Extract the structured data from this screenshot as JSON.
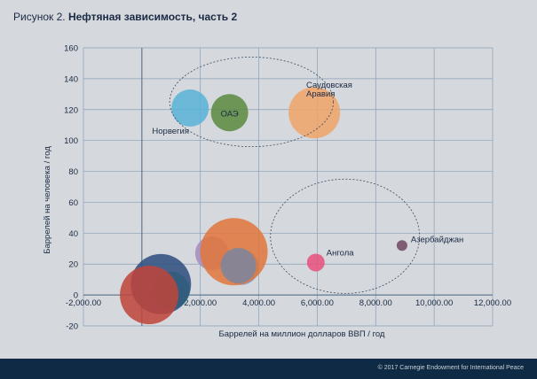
{
  "figure_title": {
    "lead": "Рисунок 2.",
    "main": "Нефтяная зависимость, часть 2"
  },
  "footer": {
    "copyright": "© 2017 Carnegie Endowment for International Peace"
  },
  "colors": {
    "background": "#d5d8dc",
    "grid": "#8aa0b8",
    "text": "#1a2a44",
    "footer": "#0f2a44"
  },
  "chart_data": {
    "type": "bubble",
    "title": "Нефтяная зависимость, часть 2",
    "xlabel": "Баррелей на миллион долларов ВВП / год",
    "ylabel": "Баррелей на человека / год",
    "xlim": [
      -2000,
      12000
    ],
    "ylim": [
      -20,
      160
    ],
    "x_ticks": [
      {
        "value": -2000,
        "label": "-2,000.00"
      },
      {
        "value": 2000,
        "label": "2,000.00"
      },
      {
        "value": 4000,
        "label": "4,000.00"
      },
      {
        "value": 6000,
        "label": "6,000.00"
      },
      {
        "value": 8000,
        "label": "8,000.00"
      },
      {
        "value": 10000,
        "label": "10,000.00"
      },
      {
        "value": 12000,
        "label": "12,000.00"
      }
    ],
    "y_ticks": [
      {
        "value": -20,
        "label": "-20"
      },
      {
        "value": 0,
        "label": "0"
      },
      {
        "value": 20,
        "label": "20"
      },
      {
        "value": 40,
        "label": "40"
      },
      {
        "value": 60,
        "label": "60"
      },
      {
        "value": 80,
        "label": "80"
      },
      {
        "value": 100,
        "label": "100"
      },
      {
        "value": 120,
        "label": "120"
      },
      {
        "value": 140,
        "label": "140"
      },
      {
        "value": 160,
        "label": "160"
      }
    ],
    "grid": true,
    "points": [
      {
        "label": "Норвегия",
        "x": 1650,
        "y": 121,
        "size": 21,
        "color": "#58b3d8"
      },
      {
        "label": "ОАЭ",
        "x": 3000,
        "y": 118,
        "size": 21,
        "color": "#5a8a3e"
      },
      {
        "label": "Саудовская Аравия",
        "x": 5900,
        "y": 118,
        "size": 29,
        "color": "#f0a469"
      },
      {
        "label": "Ангола",
        "x": 5950,
        "y": 21,
        "size": 10,
        "color": "#e8507c"
      },
      {
        "label": "Азербайджан",
        "x": 8900,
        "y": 32,
        "size": 6,
        "color": "#6e4660"
      },
      {
        "label": "",
        "x": 2400,
        "y": 27,
        "size": 19,
        "color": "#a48cc0"
      },
      {
        "label": "",
        "x": 3400,
        "y": 18,
        "size": 20,
        "color": "#7a9ac8"
      },
      {
        "label": "",
        "x": 3150,
        "y": 28,
        "size": 38,
        "color": "#e0753a"
      },
      {
        "label": "",
        "x": 3300,
        "y": 19,
        "size": 20,
        "color": "#7a86a0"
      },
      {
        "label": "",
        "x": 1000,
        "y": 3,
        "size": 21,
        "color": "#3ab06e"
      },
      {
        "label": "",
        "x": 650,
        "y": 7,
        "size": 34,
        "color": "#2d4e7e"
      },
      {
        "label": "",
        "x": 250,
        "y": 0,
        "size": 33,
        "color": "#c0443a"
      }
    ],
    "annotations": [
      {
        "type": "ellipse",
        "cx": 3750,
        "cy": 125,
        "rx": 2800,
        "ry": 29
      },
      {
        "type": "ellipse",
        "cx": 6950,
        "cy": 38,
        "rx": 2550,
        "ry": 37
      }
    ]
  }
}
